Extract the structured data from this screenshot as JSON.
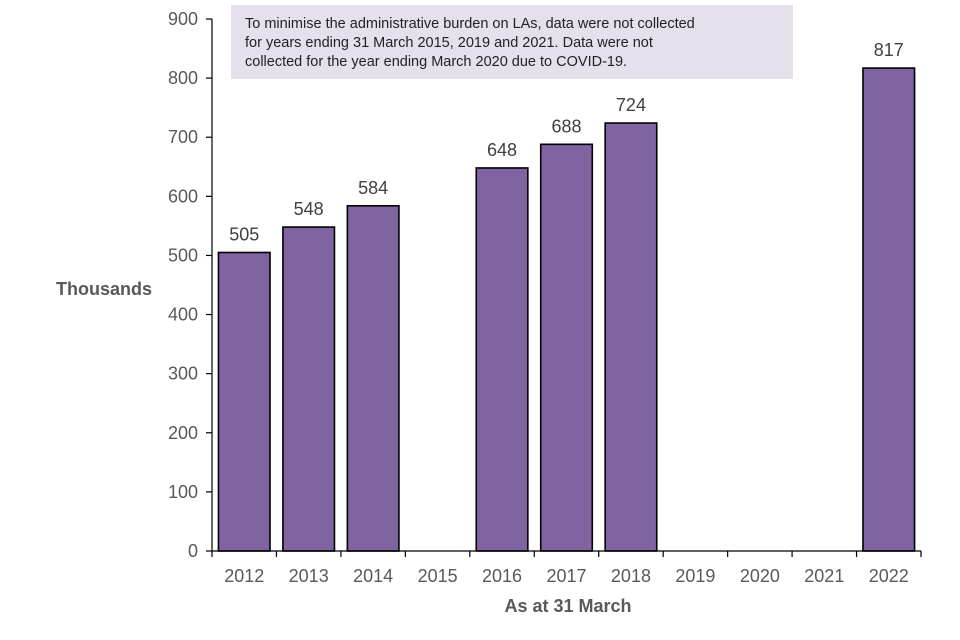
{
  "chart_data": {
    "type": "bar",
    "categories": [
      "2012",
      "2013",
      "2014",
      "2015",
      "2016",
      "2017",
      "2018",
      "2019",
      "2020",
      "2021",
      "2022"
    ],
    "values": [
      505,
      548,
      584,
      null,
      648,
      688,
      724,
      null,
      null,
      null,
      817
    ],
    "data_labels": [
      "505",
      "548",
      "584",
      "",
      "648",
      "688",
      "724",
      "",
      "",
      "",
      "817"
    ],
    "xlabel": "As at 31 March",
    "ylabel": "Thousands",
    "ylim": [
      0,
      900
    ],
    "yticks": [
      0,
      100,
      200,
      300,
      400,
      500,
      600,
      700,
      800,
      900
    ],
    "grid": false,
    "bar_color": "#8064a2",
    "bar_edge_color": "#000000",
    "note": {
      "lines": [
        "To minimise the administrative  burden on LAs, data were not collected",
        "for years ending 31 March 2015, 2019 and 2021. Data were not",
        "collected for the year ending March 2020 due to COVID-19."
      ],
      "background": "#e6e0ec"
    }
  }
}
